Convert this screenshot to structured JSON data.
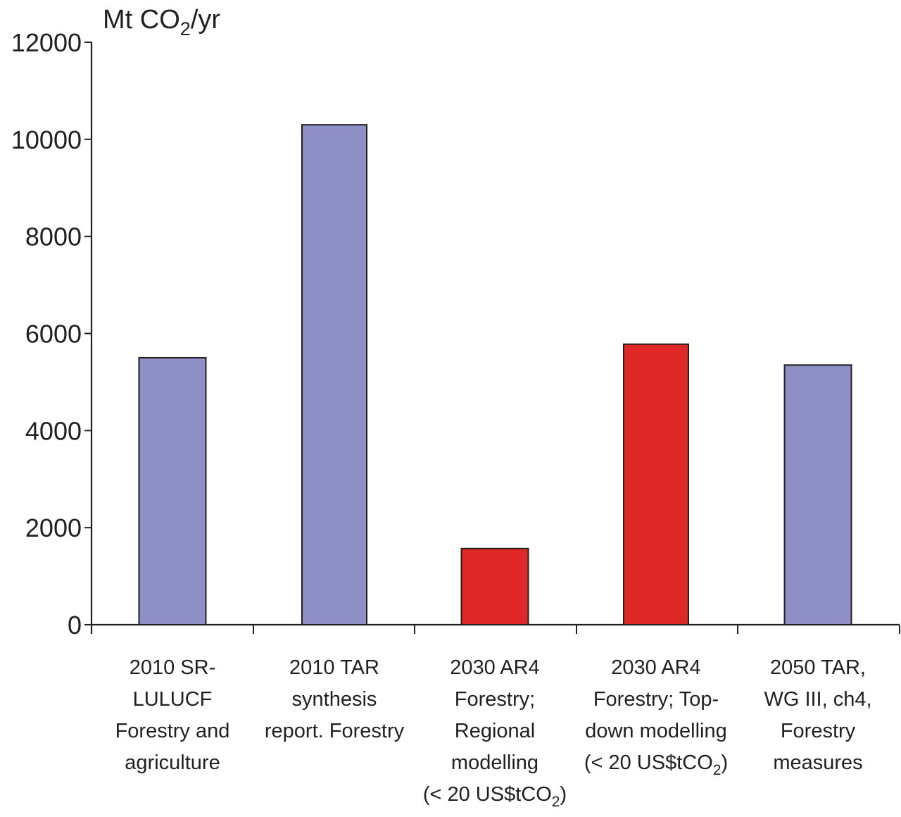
{
  "chart_data": {
    "type": "bar",
    "ylabel": {
      "prefix": "Mt CO",
      "sub": "2",
      "suffix": "/yr"
    },
    "ylim": [
      0,
      12000
    ],
    "yticks": [
      "0",
      "2000",
      "4000",
      "6000",
      "8000",
      "10000",
      "12000"
    ],
    "grid": false,
    "legend": "none",
    "colors": {
      "blue": "#8d8fc6",
      "red": "#e02826",
      "axis": "#231f20",
      "text": "#231f20"
    },
    "categories": [
      {
        "lines": [
          "2010   SR-",
          "LULUCF",
          "Forestry and",
          "agriculture"
        ],
        "value": 5500,
        "color": "blue"
      },
      {
        "lines": [
          "2010  TAR",
          "synthesis",
          "report. Forestry"
        ],
        "value": 10300,
        "color": "blue"
      },
      {
        "lines": [
          "2030  AR4",
          "Forestry;",
          "Regional",
          "modelling",
          "(< 20 US$tCO|2|)"
        ],
        "value": 1570,
        "color": "red"
      },
      {
        "lines": [
          "2030   AR4",
          "Forestry;  Top-",
          "down modelling",
          "(< 20 US$tCO|2|)"
        ],
        "value": 5780,
        "color": "red"
      },
      {
        "lines": [
          "2050   TAR,",
          "WG III, ch4,",
          "Forestry",
          "measures"
        ],
        "value": 5350,
        "color": "blue"
      }
    ]
  }
}
